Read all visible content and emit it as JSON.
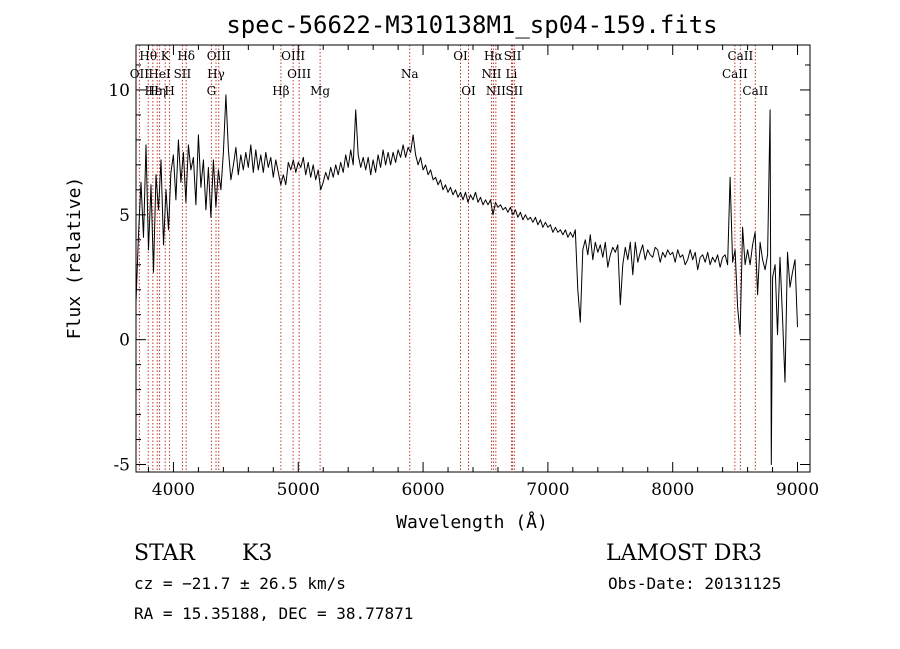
{
  "chart_data": {
    "type": "line",
    "title": "spec-56622-M310138M1_sp04-159.fits",
    "xlabel": "Wavelength (Å)",
    "ylabel": "Flux (relative)",
    "xlim": [
      3700,
      9100
    ],
    "ylim": [
      -5.3,
      11.8
    ],
    "xticks": [
      4000,
      5000,
      6000,
      7000,
      8000,
      9000
    ],
    "yticks": [
      -5,
      0,
      5,
      10
    ],
    "spectrum_color": "#000000",
    "line_marker_color": "#c0392b",
    "spectrum": [
      [
        3700,
        1.5
      ],
      [
        3720,
        4.2
      ],
      [
        3740,
        6.3
      ],
      [
        3760,
        4.1
      ],
      [
        3780,
        7.8
      ],
      [
        3800,
        3.6
      ],
      [
        3820,
        6.2
      ],
      [
        3840,
        2.7
      ],
      [
        3860,
        6.6
      ],
      [
        3880,
        5.2
      ],
      [
        3900,
        7.2
      ],
      [
        3920,
        3.8
      ],
      [
        3940,
        6.0
      ],
      [
        3960,
        4.4
      ],
      [
        3980,
        6.7
      ],
      [
        4000,
        7.4
      ],
      [
        4020,
        5.6
      ],
      [
        4040,
        8.0
      ],
      [
        4060,
        6.3
      ],
      [
        4080,
        7.5
      ],
      [
        4100,
        5.5
      ],
      [
        4120,
        7.8
      ],
      [
        4140,
        6.8
      ],
      [
        4160,
        7.3
      ],
      [
        4180,
        5.4
      ],
      [
        4200,
        8.2
      ],
      [
        4220,
        6.1
      ],
      [
        4240,
        7.2
      ],
      [
        4260,
        5.2
      ],
      [
        4280,
        6.9
      ],
      [
        4300,
        4.9
      ],
      [
        4320,
        7.2
      ],
      [
        4340,
        5.3
      ],
      [
        4360,
        6.8
      ],
      [
        4380,
        6.0
      ],
      [
        4400,
        7.5
      ],
      [
        4420,
        9.8
      ],
      [
        4440,
        7.6
      ],
      [
        4460,
        6.4
      ],
      [
        4480,
        7.0
      ],
      [
        4500,
        7.7
      ],
      [
        4520,
        6.6
      ],
      [
        4540,
        7.4
      ],
      [
        4560,
        6.8
      ],
      [
        4580,
        7.5
      ],
      [
        4600,
        6.9
      ],
      [
        4620,
        7.8
      ],
      [
        4640,
        6.7
      ],
      [
        4660,
        7.6
      ],
      [
        4680,
        6.8
      ],
      [
        4700,
        7.4
      ],
      [
        4720,
        6.7
      ],
      [
        4740,
        7.5
      ],
      [
        4760,
        6.9
      ],
      [
        4780,
        7.3
      ],
      [
        4800,
        6.5
      ],
      [
        4820,
        7.2
      ],
      [
        4840,
        6.7
      ],
      [
        4860,
        6.2
      ],
      [
        4880,
        6.6
      ],
      [
        4900,
        6.2
      ],
      [
        4920,
        7.1
      ],
      [
        4940,
        6.8
      ],
      [
        4960,
        7.2
      ],
      [
        4980,
        6.7
      ],
      [
        5000,
        7.1
      ],
      [
        5020,
        6.9
      ],
      [
        5040,
        7.3
      ],
      [
        5060,
        6.6
      ],
      [
        5080,
        7.1
      ],
      [
        5100,
        6.5
      ],
      [
        5120,
        7.0
      ],
      [
        5140,
        6.4
      ],
      [
        5160,
        6.8
      ],
      [
        5180,
        6.0
      ],
      [
        5200,
        6.3
      ],
      [
        5220,
        6.7
      ],
      [
        5240,
        6.4
      ],
      [
        5260,
        6.9
      ],
      [
        5280,
        6.5
      ],
      [
        5300,
        7.0
      ],
      [
        5320,
        6.6
      ],
      [
        5340,
        7.1
      ],
      [
        5360,
        6.7
      ],
      [
        5380,
        7.4
      ],
      [
        5400,
        6.9
      ],
      [
        5420,
        7.6
      ],
      [
        5440,
        7.0
      ],
      [
        5460,
        9.2
      ],
      [
        5480,
        7.4
      ],
      [
        5500,
        6.9
      ],
      [
        5520,
        7.3
      ],
      [
        5540,
        6.8
      ],
      [
        5560,
        7.3
      ],
      [
        5580,
        6.6
      ],
      [
        5600,
        7.2
      ],
      [
        5620,
        6.7
      ],
      [
        5640,
        7.4
      ],
      [
        5660,
        6.9
      ],
      [
        5680,
        7.6
      ],
      [
        5700,
        7.0
      ],
      [
        5720,
        7.5
      ],
      [
        5740,
        7.0
      ],
      [
        5760,
        7.5
      ],
      [
        5780,
        7.1
      ],
      [
        5800,
        7.6
      ],
      [
        5820,
        7.3
      ],
      [
        5840,
        7.8
      ],
      [
        5860,
        7.3
      ],
      [
        5880,
        7.7
      ],
      [
        5900,
        7.5
      ],
      [
        5920,
        8.2
      ],
      [
        5940,
        7.4
      ],
      [
        5960,
        7.0
      ],
      [
        5980,
        7.3
      ],
      [
        6000,
        6.8
      ],
      [
        6020,
        7.0
      ],
      [
        6040,
        6.6
      ],
      [
        6060,
        6.8
      ],
      [
        6080,
        6.4
      ],
      [
        6100,
        6.5
      ],
      [
        6120,
        6.2
      ],
      [
        6140,
        6.4
      ],
      [
        6160,
        6.0
      ],
      [
        6180,
        6.2
      ],
      [
        6200,
        5.9
      ],
      [
        6220,
        6.1
      ],
      [
        6240,
        5.8
      ],
      [
        6260,
        6.0
      ],
      [
        6280,
        5.7
      ],
      [
        6300,
        5.9
      ],
      [
        6320,
        5.6
      ],
      [
        6340,
        5.9
      ],
      [
        6360,
        5.5
      ],
      [
        6380,
        5.8
      ],
      [
        6400,
        5.6
      ],
      [
        6420,
        5.9
      ],
      [
        6440,
        5.5
      ],
      [
        6460,
        5.7
      ],
      [
        6480,
        5.4
      ],
      [
        6500,
        5.6
      ],
      [
        6520,
        5.4
      ],
      [
        6540,
        5.6
      ],
      [
        6560,
        5.0
      ],
      [
        6580,
        5.5
      ],
      [
        6600,
        5.3
      ],
      [
        6620,
        5.4
      ],
      [
        6640,
        5.2
      ],
      [
        6660,
        5.3
      ],
      [
        6680,
        5.1
      ],
      [
        6700,
        5.3
      ],
      [
        6720,
        5.0
      ],
      [
        6740,
        5.2
      ],
      [
        6760,
        4.9
      ],
      [
        6780,
        5.1
      ],
      [
        6800,
        4.8
      ],
      [
        6820,
        5.0
      ],
      [
        6840,
        4.8
      ],
      [
        6860,
        4.9
      ],
      [
        6880,
        4.7
      ],
      [
        6900,
        4.9
      ],
      [
        6920,
        4.6
      ],
      [
        6940,
        4.8
      ],
      [
        6960,
        4.5
      ],
      [
        6980,
        4.7
      ],
      [
        7000,
        4.5
      ],
      [
        7020,
        4.6
      ],
      [
        7040,
        4.3
      ],
      [
        7060,
        4.5
      ],
      [
        7080,
        4.3
      ],
      [
        7100,
        4.4
      ],
      [
        7120,
        4.2
      ],
      [
        7140,
        4.4
      ],
      [
        7160,
        4.1
      ],
      [
        7180,
        4.3
      ],
      [
        7200,
        4.1
      ],
      [
        7220,
        4.4
      ],
      [
        7240,
        2.0
      ],
      [
        7260,
        0.7
      ],
      [
        7280,
        3.6
      ],
      [
        7300,
        4.0
      ],
      [
        7320,
        3.4
      ],
      [
        7340,
        4.2
      ],
      [
        7360,
        3.2
      ],
      [
        7380,
        3.9
      ],
      [
        7400,
        3.5
      ],
      [
        7420,
        3.8
      ],
      [
        7440,
        3.3
      ],
      [
        7460,
        3.9
      ],
      [
        7480,
        2.9
      ],
      [
        7500,
        3.4
      ],
      [
        7520,
        3.7
      ],
      [
        7540,
        3.5
      ],
      [
        7560,
        3.8
      ],
      [
        7580,
        1.4
      ],
      [
        7600,
        3.0
      ],
      [
        7620,
        3.7
      ],
      [
        7640,
        3.2
      ],
      [
        7660,
        3.9
      ],
      [
        7680,
        2.6
      ],
      [
        7700,
        3.9
      ],
      [
        7720,
        3.1
      ],
      [
        7740,
        3.5
      ],
      [
        7760,
        3.8
      ],
      [
        7780,
        3.2
      ],
      [
        7800,
        3.6
      ],
      [
        7820,
        3.4
      ],
      [
        7840,
        3.3
      ],
      [
        7860,
        3.7
      ],
      [
        7880,
        3.6
      ],
      [
        7900,
        3.1
      ],
      [
        7920,
        3.5
      ],
      [
        7940,
        3.3
      ],
      [
        7960,
        3.6
      ],
      [
        7980,
        3.4
      ],
      [
        8000,
        3.5
      ],
      [
        8020,
        3.1
      ],
      [
        8040,
        3.6
      ],
      [
        8060,
        3.3
      ],
      [
        8080,
        3.4
      ],
      [
        8100,
        3.0
      ],
      [
        8120,
        3.2
      ],
      [
        8140,
        3.6
      ],
      [
        8160,
        3.2
      ],
      [
        8180,
        3.5
      ],
      [
        8200,
        2.8
      ],
      [
        8220,
        3.3
      ],
      [
        8240,
        3.4
      ],
      [
        8260,
        3.1
      ],
      [
        8280,
        3.5
      ],
      [
        8300,
        3.0
      ],
      [
        8320,
        3.3
      ],
      [
        8340,
        3.1
      ],
      [
        8360,
        3.4
      ],
      [
        8380,
        2.9
      ],
      [
        8400,
        3.3
      ],
      [
        8420,
        3.4
      ],
      [
        8440,
        3.0
      ],
      [
        8460,
        6.5
      ],
      [
        8480,
        3.1
      ],
      [
        8500,
        3.6
      ],
      [
        8520,
        1.3
      ],
      [
        8540,
        0.2
      ],
      [
        8560,
        4.5
      ],
      [
        8580,
        3.0
      ],
      [
        8600,
        3.6
      ],
      [
        8620,
        3.0
      ],
      [
        8640,
        3.8
      ],
      [
        8660,
        4.3
      ],
      [
        8680,
        1.8
      ],
      [
        8700,
        3.9
      ],
      [
        8720,
        3.2
      ],
      [
        8740,
        2.8
      ],
      [
        8760,
        3.4
      ],
      [
        8780,
        9.2
      ],
      [
        8790,
        -5.0
      ],
      [
        8800,
        2.5
      ],
      [
        8820,
        3.0
      ],
      [
        8840,
        0.2
      ],
      [
        8860,
        3.3
      ],
      [
        8880,
        0.9
      ],
      [
        8900,
        -1.7
      ],
      [
        8920,
        3.5
      ],
      [
        8940,
        2.1
      ],
      [
        8960,
        2.7
      ],
      [
        8980,
        3.2
      ],
      [
        9000,
        0.5
      ]
    ],
    "lines": [
      {
        "label": "Hθ",
        "wl": 3798,
        "row": 0
      },
      {
        "label": "K",
        "wl": 3934,
        "row": 0
      },
      {
        "label": "Hδ",
        "wl": 4102,
        "row": 0
      },
      {
        "label": "OIII",
        "wl": 4363,
        "row": 0
      },
      {
        "label": "OIII",
        "wl": 4959,
        "row": 0
      },
      {
        "label": "OI",
        "wl": 6300,
        "row": 0
      },
      {
        "label": "Hα",
        "wl": 6563,
        "row": 0
      },
      {
        "label": "SII",
        "wl": 6717,
        "row": 0
      },
      {
        "label": "CaII",
        "wl": 8542,
        "row": 0
      },
      {
        "label": "OII",
        "wl": 3727,
        "row": 1
      },
      {
        "label": "HeI",
        "wl": 3889,
        "row": 1
      },
      {
        "label": "SII",
        "wl": 4072,
        "row": 1
      },
      {
        "label": "Hγ",
        "wl": 4341,
        "row": 1
      },
      {
        "label": "OIII",
        "wl": 5007,
        "row": 1
      },
      {
        "label": "Na",
        "wl": 5893,
        "row": 1
      },
      {
        "label": "NII",
        "wl": 6548,
        "row": 1
      },
      {
        "label": "Li",
        "wl": 6708,
        "row": 1
      },
      {
        "label": "CaII",
        "wl": 8498,
        "row": 1
      },
      {
        "label": "Hε",
        "wl": 3835,
        "row": 2
      },
      {
        "label": "Hη",
        "wl": 3870,
        "row": 2
      },
      {
        "label": "H",
        "wl": 3969,
        "row": 2
      },
      {
        "label": "G",
        "wl": 4304,
        "row": 2
      },
      {
        "label": "Hβ",
        "wl": 4861,
        "row": 2
      },
      {
        "label": "Mg",
        "wl": 5175,
        "row": 2
      },
      {
        "label": "OI",
        "wl": 6364,
        "row": 2
      },
      {
        "label": "NII",
        "wl": 6583,
        "row": 2
      },
      {
        "label": "SII",
        "wl": 6731,
        "row": 2
      },
      {
        "label": "CaII",
        "wl": 8662,
        "row": 2
      }
    ]
  },
  "info": {
    "object_type": "STAR",
    "subclass": "K3",
    "survey": "LAMOST DR3",
    "cz": "cz = −21.7 ± 26.5 km/s",
    "obs_date": "Obs-Date: 20131125",
    "coords": "RA =  15.35188, DEC =  38.77871"
  }
}
